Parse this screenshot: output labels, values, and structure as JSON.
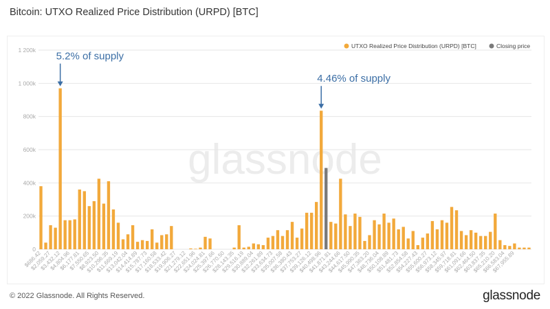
{
  "header": {
    "title": "Bitcoin: UTXO Realized Price Distribution (URPD) [BTC]"
  },
  "footer": {
    "copyright": "© 2022 Glassnode. All Rights Reserved.",
    "brand": "glassnode"
  },
  "watermark": "glassnode",
  "colors": {
    "bar": "#f2a93b",
    "closing": "#7a7a7a",
    "annotation": "#3b6ea5",
    "grid": "#e6e6e6",
    "tick": "#aaaaaa"
  },
  "chart_data": {
    "type": "bar",
    "title": "Bitcoin: UTXO Realized Price Distribution (URPD) [BTC]",
    "xlabel": "",
    "ylabel": "",
    "ylim": [
      0,
      1200000
    ],
    "yticks": [
      0,
      200000,
      400000,
      600000,
      800000,
      1000000,
      1200000
    ],
    "ytick_labels": [
      "0",
      "200k",
      "400k",
      "600k",
      "800k",
      "1 000k",
      "1 200k"
    ],
    "grid": true,
    "legend_position": "top-right",
    "legend": [
      {
        "name": "UTXO Realized Price Distribution (URPD) [BTC]",
        "color": "#f2a93b"
      },
      {
        "name": "Closing price",
        "color": "#7a7a7a"
      }
    ],
    "x_tick_labels": [
      "$686.42",
      "$2,059.27",
      "$3,432.12",
      "$4,804.96",
      "$6,177.81",
      "$7,550.65",
      "$8,923.50",
      "$10,296.35",
      "$11,669.19",
      "$13,042.04",
      "$14,414.89",
      "$15,787.73",
      "$17,160.58",
      "$18,533.42",
      "$19,906.27",
      "$21,279.12",
      "$22,651.96",
      "$24,024.81",
      "$25,397.66",
      "$26,770.50",
      "$28,143.35",
      "$29,516.19",
      "$30,889.04",
      "$32,261.89",
      "$33,634.73",
      "$35,007.58",
      "$36,380.43",
      "$37,753.27",
      "$39,126.12",
      "$40,498.96",
      "$41,871.81",
      "$43,244.66",
      "$44,617.50",
      "$45,990.35",
      "$47,363.20",
      "$48,736.04",
      "$50,108.89",
      "$51,481.73",
      "$52,854.58",
      "$54,227.43",
      "$55,600.27",
      "$56,973.12",
      "$58,345.97",
      "$59,718.81",
      "$61,091.66",
      "$62,464.50",
      "$63,837.35",
      "$65,210.20",
      "$66,583.04",
      "$67,955.89"
    ],
    "values": [
      380000,
      40000,
      145000,
      130000,
      970000,
      175000,
      175000,
      180000,
      360000,
      350000,
      260000,
      290000,
      425000,
      275000,
      410000,
      240000,
      160000,
      60000,
      90000,
      145000,
      45000,
      55000,
      50000,
      120000,
      40000,
      85000,
      90000,
      140000,
      0,
      0,
      0,
      5000,
      3000,
      10000,
      75000,
      65000,
      0,
      0,
      0,
      0,
      10000,
      145000,
      10000,
      15000,
      35000,
      30000,
      25000,
      70000,
      80000,
      115000,
      80000,
      115000,
      165000,
      70000,
      125000,
      220000,
      220000,
      285000,
      835000,
      490000,
      165000,
      155000,
      425000,
      210000,
      140000,
      215000,
      195000,
      50000,
      85000,
      175000,
      150000,
      215000,
      160000,
      185000,
      120000,
      135000,
      65000,
      110000,
      25000,
      70000,
      95000,
      170000,
      120000,
      175000,
      160000,
      255000,
      235000,
      110000,
      85000,
      115000,
      100000,
      80000,
      80000,
      105000,
      215000,
      55000,
      25000,
      20000,
      35000,
      10000,
      10000,
      10000
    ],
    "closing_price_index": 59,
    "annotations": [
      {
        "text": "5.2% of supply",
        "bar_index": 4
      },
      {
        "text": "4.46% of supply",
        "bar_index": 58
      }
    ]
  }
}
